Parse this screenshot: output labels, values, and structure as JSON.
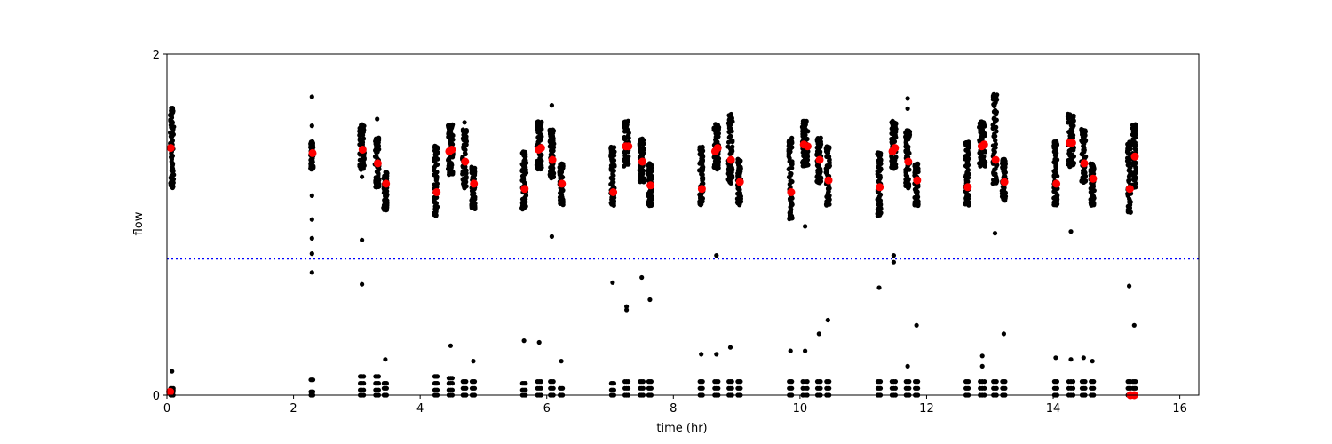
{
  "chart_data": {
    "type": "scatter",
    "title": "",
    "xlabel": "time (hr)",
    "ylabel": "flow",
    "xlim": [
      0,
      16.3
    ],
    "ylim": [
      0,
      2
    ],
    "x_ticks": [
      0,
      2,
      4,
      6,
      8,
      10,
      12,
      14,
      16
    ],
    "y_ticks": [
      0,
      2
    ],
    "grid": false,
    "legend": "none",
    "threshold": {
      "y": 0.8,
      "color": "#0000ff",
      "style": "dotted"
    },
    "colors": {
      "points": "#000000",
      "means": "#ff0000"
    },
    "clusters": [
      {
        "x": 0.08,
        "w": 0.06,
        "ymin": 1.22,
        "ymax": 1.68,
        "extra": [
          0.0,
          0.02,
          0.03,
          0.04,
          0.14
        ]
      },
      {
        "x": 2.29,
        "w": 0.05,
        "ymin": 1.33,
        "ymax": 1.48,
        "extra": [
          0.0,
          0.02,
          0.09,
          0.72,
          0.83,
          0.92,
          1.03,
          1.17,
          1.58,
          1.75
        ]
      },
      {
        "x": 3.08,
        "w": 0.08,
        "ymin": 1.33,
        "ymax": 1.58,
        "extra": [
          0.0,
          0.03,
          0.07,
          0.11,
          0.65,
          0.91,
          1.28
        ]
      },
      {
        "x": 3.32,
        "w": 0.07,
        "ymin": 1.22,
        "ymax": 1.5,
        "extra": [
          0.0,
          0.03,
          0.07,
          0.11,
          1.62
        ]
      },
      {
        "x": 3.45,
        "w": 0.06,
        "ymin": 1.09,
        "ymax": 1.3,
        "extra": [
          0.0,
          0.04,
          0.07,
          0.21
        ]
      },
      {
        "x": 4.25,
        "w": 0.06,
        "ymin": 1.06,
        "ymax": 1.46,
        "extra": [
          0.0,
          0.03,
          0.07,
          0.11
        ]
      },
      {
        "x": 4.48,
        "w": 0.08,
        "ymin": 1.3,
        "ymax": 1.58,
        "extra": [
          0.0,
          0.03,
          0.07,
          0.1,
          0.29
        ]
      },
      {
        "x": 4.7,
        "w": 0.07,
        "ymin": 1.22,
        "ymax": 1.55,
        "extra": [
          0.0,
          0.04,
          0.08,
          1.6
        ]
      },
      {
        "x": 4.84,
        "w": 0.06,
        "ymin": 1.1,
        "ymax": 1.33,
        "extra": [
          0.0,
          0.04,
          0.08,
          0.2
        ]
      },
      {
        "x": 5.64,
        "w": 0.07,
        "ymin": 1.1,
        "ymax": 1.42,
        "extra": [
          0.0,
          0.03,
          0.07,
          0.32
        ]
      },
      {
        "x": 5.88,
        "w": 0.08,
        "ymin": 1.33,
        "ymax": 1.6,
        "extra": [
          0.0,
          0.04,
          0.08,
          0.31
        ]
      },
      {
        "x": 6.08,
        "w": 0.07,
        "ymin": 1.28,
        "ymax": 1.55,
        "extra": [
          0.0,
          0.04,
          0.08,
          0.93,
          1.7
        ]
      },
      {
        "x": 6.23,
        "w": 0.06,
        "ymin": 1.12,
        "ymax": 1.35,
        "extra": [
          0.0,
          0.04,
          0.2
        ]
      },
      {
        "x": 7.04,
        "w": 0.06,
        "ymin": 1.12,
        "ymax": 1.45,
        "extra": [
          0.0,
          0.03,
          0.07,
          0.66
        ]
      },
      {
        "x": 7.26,
        "w": 0.08,
        "ymin": 1.35,
        "ymax": 1.6,
        "extra": [
          0.0,
          0.04,
          0.08,
          0.5,
          0.52
        ]
      },
      {
        "x": 7.5,
        "w": 0.07,
        "ymin": 1.25,
        "ymax": 1.5,
        "extra": [
          0.0,
          0.04,
          0.08,
          0.69
        ]
      },
      {
        "x": 7.63,
        "w": 0.06,
        "ymin": 1.12,
        "ymax": 1.35,
        "extra": [
          0.0,
          0.04,
          0.08,
          0.56
        ]
      },
      {
        "x": 8.44,
        "w": 0.06,
        "ymin": 1.12,
        "ymax": 1.45,
        "extra": [
          0.0,
          0.04,
          0.08,
          0.24
        ]
      },
      {
        "x": 8.68,
        "w": 0.08,
        "ymin": 1.33,
        "ymax": 1.58,
        "extra": [
          0.0,
          0.04,
          0.08,
          0.24,
          0.82
        ]
      },
      {
        "x": 8.9,
        "w": 0.07,
        "ymin": 1.25,
        "ymax": 1.64,
        "extra": [
          0.0,
          0.04,
          0.08,
          0.28
        ]
      },
      {
        "x": 9.04,
        "w": 0.06,
        "ymin": 1.12,
        "ymax": 1.38,
        "extra": [
          0.0,
          0.04,
          0.08
        ]
      },
      {
        "x": 9.85,
        "w": 0.06,
        "ymin": 1.04,
        "ymax": 1.5,
        "extra": [
          0.0,
          0.04,
          0.08,
          0.26
        ]
      },
      {
        "x": 10.08,
        "w": 0.1,
        "ymin": 1.35,
        "ymax": 1.6,
        "extra": [
          0.0,
          0.04,
          0.08,
          0.26,
          0.99
        ]
      },
      {
        "x": 10.3,
        "w": 0.07,
        "ymin": 1.25,
        "ymax": 1.5,
        "extra": [
          0.0,
          0.04,
          0.08,
          0.36
        ]
      },
      {
        "x": 10.44,
        "w": 0.06,
        "ymin": 1.12,
        "ymax": 1.45,
        "extra": [
          0.0,
          0.04,
          0.08,
          0.44
        ]
      },
      {
        "x": 11.25,
        "w": 0.06,
        "ymin": 1.06,
        "ymax": 1.42,
        "extra": [
          0.0,
          0.04,
          0.08,
          0.63
        ]
      },
      {
        "x": 11.48,
        "w": 0.08,
        "ymin": 1.33,
        "ymax": 1.6,
        "extra": [
          0.0,
          0.04,
          0.08,
          0.78,
          0.82
        ]
      },
      {
        "x": 11.7,
        "w": 0.07,
        "ymin": 1.22,
        "ymax": 1.55,
        "extra": [
          0.0,
          0.04,
          0.08,
          0.17,
          1.68,
          1.74
        ]
      },
      {
        "x": 11.84,
        "w": 0.06,
        "ymin": 1.12,
        "ymax": 1.35,
        "extra": [
          0.0,
          0.04,
          0.08,
          0.41
        ]
      },
      {
        "x": 12.64,
        "w": 0.06,
        "ymin": 1.12,
        "ymax": 1.48,
        "extra": [
          0.0,
          0.04,
          0.08
        ]
      },
      {
        "x": 12.88,
        "w": 0.1,
        "ymin": 1.35,
        "ymax": 1.6,
        "extra": [
          0.0,
          0.04,
          0.08,
          0.17,
          0.23
        ]
      },
      {
        "x": 13.08,
        "w": 0.07,
        "ymin": 1.25,
        "ymax": 1.76,
        "extra": [
          0.0,
          0.04,
          0.08,
          0.95
        ]
      },
      {
        "x": 13.22,
        "w": 0.06,
        "ymin": 1.15,
        "ymax": 1.38,
        "extra": [
          0.0,
          0.04,
          0.08,
          0.36
        ]
      },
      {
        "x": 14.04,
        "w": 0.06,
        "ymin": 1.12,
        "ymax": 1.48,
        "extra": [
          0.0,
          0.04,
          0.08,
          0.22
        ]
      },
      {
        "x": 14.28,
        "w": 0.1,
        "ymin": 1.35,
        "ymax": 1.64,
        "extra": [
          0.0,
          0.04,
          0.08,
          0.21,
          0.96
        ]
      },
      {
        "x": 14.48,
        "w": 0.07,
        "ymin": 1.25,
        "ymax": 1.55,
        "extra": [
          0.0,
          0.04,
          0.08,
          0.22
        ]
      },
      {
        "x": 14.62,
        "w": 0.06,
        "ymin": 1.12,
        "ymax": 1.35,
        "extra": [
          0.0,
          0.04,
          0.08,
          0.2
        ]
      },
      {
        "x": 15.2,
        "w": 0.06,
        "ymin": 1.08,
        "ymax": 1.48,
        "extra": [
          0.0,
          0.04,
          0.08,
          0.64
        ]
      },
      {
        "x": 15.28,
        "w": 0.06,
        "ymin": 1.22,
        "ymax": 1.58,
        "extra": [
          0.0,
          0.04,
          0.08,
          0.41
        ]
      }
    ],
    "means": [
      {
        "x": 0.06,
        "y": 1.45
      },
      {
        "x": 0.05,
        "y": 0.02
      },
      {
        "x": 2.3,
        "y": 1.42
      },
      {
        "x": 3.09,
        "y": 1.44
      },
      {
        "x": 3.33,
        "y": 1.36
      },
      {
        "x": 3.46,
        "y": 1.24
      },
      {
        "x": 4.26,
        "y": 1.19
      },
      {
        "x": 4.46,
        "y": 1.43
      },
      {
        "x": 4.5,
        "y": 1.44
      },
      {
        "x": 4.71,
        "y": 1.37
      },
      {
        "x": 4.85,
        "y": 1.24
      },
      {
        "x": 5.65,
        "y": 1.21
      },
      {
        "x": 5.87,
        "y": 1.44
      },
      {
        "x": 5.91,
        "y": 1.45
      },
      {
        "x": 6.09,
        "y": 1.38
      },
      {
        "x": 6.24,
        "y": 1.24
      },
      {
        "x": 7.05,
        "y": 1.19
      },
      {
        "x": 7.25,
        "y": 1.46
      },
      {
        "x": 7.29,
        "y": 1.46
      },
      {
        "x": 7.51,
        "y": 1.37
      },
      {
        "x": 7.64,
        "y": 1.23
      },
      {
        "x": 8.45,
        "y": 1.21
      },
      {
        "x": 8.66,
        "y": 1.43
      },
      {
        "x": 8.7,
        "y": 1.45
      },
      {
        "x": 8.91,
        "y": 1.38
      },
      {
        "x": 9.05,
        "y": 1.25
      },
      {
        "x": 9.86,
        "y": 1.19
      },
      {
        "x": 10.06,
        "y": 1.47
      },
      {
        "x": 10.12,
        "y": 1.46
      },
      {
        "x": 10.31,
        "y": 1.38
      },
      {
        "x": 10.45,
        "y": 1.26
      },
      {
        "x": 11.26,
        "y": 1.22
      },
      {
        "x": 11.46,
        "y": 1.43
      },
      {
        "x": 11.5,
        "y": 1.45
      },
      {
        "x": 11.71,
        "y": 1.37
      },
      {
        "x": 11.85,
        "y": 1.26
      },
      {
        "x": 12.65,
        "y": 1.22
      },
      {
        "x": 12.87,
        "y": 1.46
      },
      {
        "x": 12.91,
        "y": 1.47
      },
      {
        "x": 13.09,
        "y": 1.38
      },
      {
        "x": 13.23,
        "y": 1.25
      },
      {
        "x": 14.05,
        "y": 1.24
      },
      {
        "x": 14.26,
        "y": 1.48
      },
      {
        "x": 14.3,
        "y": 1.48
      },
      {
        "x": 14.49,
        "y": 1.36
      },
      {
        "x": 14.63,
        "y": 1.27
      },
      {
        "x": 15.21,
        "y": 1.21
      },
      {
        "x": 15.29,
        "y": 1.4
      },
      {
        "x": 15.22,
        "y": 0.0
      },
      {
        "x": 15.28,
        "y": 0.0
      }
    ]
  }
}
